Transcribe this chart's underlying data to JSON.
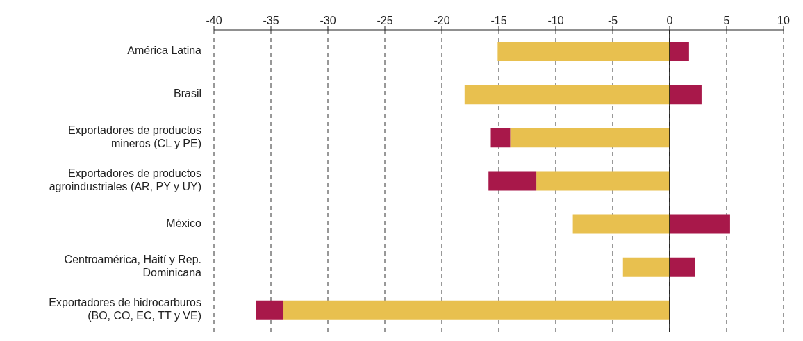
{
  "chart_data": {
    "type": "bar",
    "orientation": "horizontal",
    "stacked": true,
    "categories": [
      "América Latina",
      "Brasil",
      "Exportadores de productos mineros (CL y PE)",
      "Exportadores de productos agroindustriales (AR, PY y UY)",
      "México",
      "Centroamérica, Haití y Rep. Dominicana",
      "Exportadores de hidrocarburos (BO, CO, EC, TT y VE)"
    ],
    "series": [
      {
        "color": "#e8c04f",
        "values": [
          -15.1,
          -18.0,
          -14.0,
          -11.7,
          -8.5,
          -4.1,
          -33.9
        ]
      },
      {
        "color": "#a8184a",
        "values": [
          1.7,
          2.8,
          -1.7,
          -4.2,
          5.3,
          2.2,
          -2.4
        ]
      }
    ],
    "xlim": [
      -40,
      10
    ],
    "xticks": [
      -40,
      -35,
      -30,
      -25,
      -20,
      -15,
      -10,
      -5,
      0,
      5,
      10
    ],
    "grid": "x",
    "ref_lines": [
      {
        "axis": "x",
        "value": 0,
        "color": "#000000"
      }
    ]
  }
}
